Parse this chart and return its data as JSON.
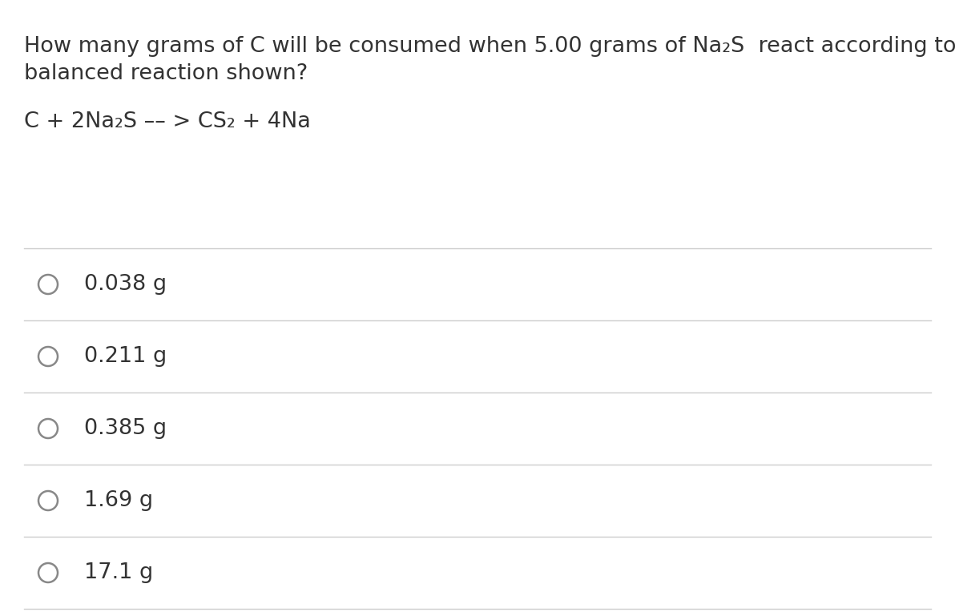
{
  "background_color": "#ffffff",
  "question_line1": "How many grams of C will be consumed when 5.00 grams of Na₂S  react according to the",
  "question_line2": "balanced reaction shown?",
  "reaction": "C + 2Na₂S –– > CS₂ + 4Na",
  "options": [
    "0.038 g",
    "0.211 g",
    "0.385 g",
    "1.69 g",
    "17.1 g"
  ],
  "text_color": "#333333",
  "line_color": "#cccccc",
  "circle_color": "#888888",
  "font_size_question": 19.5,
  "font_size_reaction": 19.5,
  "font_size_options": 19.5,
  "fig_width": 11.92,
  "fig_height": 7.64,
  "dpi": 100
}
